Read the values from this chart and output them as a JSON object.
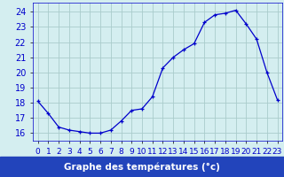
{
  "hours": [
    0,
    1,
    2,
    3,
    4,
    5,
    6,
    7,
    8,
    9,
    10,
    11,
    12,
    13,
    14,
    15,
    16,
    17,
    18,
    19,
    20,
    21,
    22,
    23
  ],
  "temps": [
    18.1,
    17.3,
    16.4,
    16.2,
    16.1,
    16.0,
    16.0,
    16.2,
    16.8,
    17.5,
    17.6,
    18.4,
    20.3,
    21.0,
    21.5,
    21.9,
    23.3,
    23.8,
    23.9,
    24.1,
    23.2,
    22.2,
    20.0,
    18.2
  ],
  "line_color": "#0000cc",
  "marker": "+",
  "bg_color": "#d4eef0",
  "grid_color": "#aacccc",
  "xlabel": "Graphe des températures (°c)",
  "xlabel_bar_color": "#2244bb",
  "ylim": [
    15.5,
    24.6
  ],
  "yticks": [
    16,
    17,
    18,
    19,
    20,
    21,
    22,
    23,
    24
  ],
  "tick_label_color": "#0000cc",
  "font_size": 7.0
}
